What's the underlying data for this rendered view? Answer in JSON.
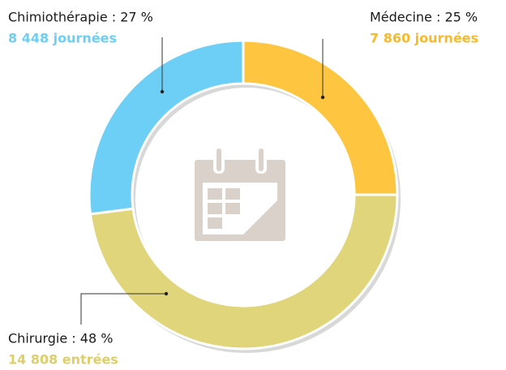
{
  "chart_data": {
    "type": "donut",
    "value_labels": [
      "Médecine : 25 %",
      "Chirurgie : 48 %",
      "Chimiothérapie : 27 %"
    ],
    "values": [
      25,
      48,
      27
    ],
    "details": [
      "7 860 journées",
      "14 808 entrées",
      "8 448 journées"
    ],
    "colors": [
      "#fec640",
      "#e0d57b",
      "#6dcff6"
    ],
    "detail_colors": [
      "#f8ba2c",
      "#ddcf68",
      "#6dcff6"
    ]
  }
}
